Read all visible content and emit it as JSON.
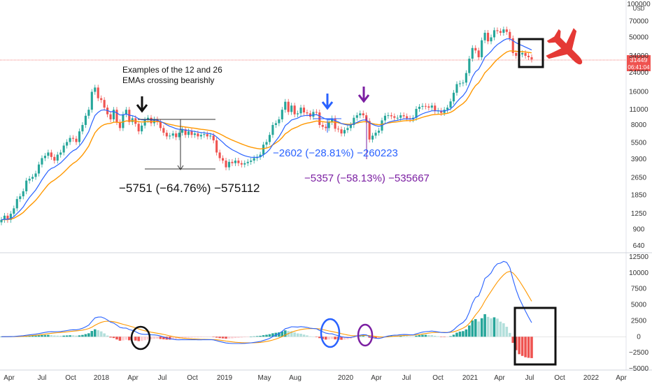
{
  "chart_data": [
    {
      "type": "candlestick",
      "scale": "log",
      "currency": "USD",
      "last_price": "31449",
      "countdown": "06:41:04",
      "y_ticks": [
        "100000",
        "70000",
        "50000",
        "34000",
        "24000",
        "16000",
        "11000",
        "8000",
        "5500",
        "3900",
        "2650",
        "1850",
        "1250",
        "900",
        "640"
      ],
      "x_ticks": [
        "Apr",
        "Jul",
        "Oct",
        "2018",
        "Apr",
        "Jul",
        "Oct",
        "2019",
        "May",
        "Aug",
        "2020",
        "Apr",
        "Jul",
        "Oct",
        "2021",
        "Apr",
        "Jul",
        "Oct",
        "2022",
        "Apr"
      ],
      "series": [
        {
          "name": "EMA 12",
          "color": "#2962ff"
        },
        {
          "name": "EMA 26",
          "color": "#ff9800"
        }
      ],
      "weekly_close": [
        1100,
        1200,
        1100,
        1250,
        1400,
        1700,
        1800,
        2000,
        2500,
        2600,
        2700,
        2900,
        3500,
        4000,
        4200,
        4500,
        4100,
        3800,
        4300,
        4500,
        5200,
        5600,
        6100,
        6000,
        5600,
        7000,
        8000,
        9700,
        11000,
        16000,
        17500,
        14000,
        13500,
        11500,
        10000,
        9000,
        11000,
        8500,
        7500,
        10000,
        11000,
        8500,
        9200,
        8200,
        7000,
        7900,
        8900,
        9300,
        8300,
        9000,
        8500,
        7500,
        6800,
        6300,
        6400,
        6700,
        6200,
        6800,
        7300,
        6500,
        7000,
        6500,
        6700,
        6300,
        6500,
        6600,
        6300,
        6400,
        5800,
        4500,
        4000,
        3800,
        3300,
        3700,
        3600,
        3800,
        3600,
        3500,
        3600,
        3700,
        3800,
        4000,
        4100,
        4300,
        5300,
        5600,
        6500,
        8000,
        8300,
        9000,
        11000,
        13000,
        10500,
        12000,
        10000,
        10200,
        11500,
        10400,
        10200,
        9500,
        10500,
        10400,
        8000,
        7700,
        7500,
        8500,
        9200,
        7400,
        7300,
        6700,
        7200,
        7500,
        8000,
        9300,
        9800,
        10200,
        9800,
        8700,
        5900,
        6400,
        6800,
        7100,
        8800,
        9700,
        9800,
        9600,
        9300,
        9300,
        9800,
        9600,
        9200,
        9000,
        9300,
        11200,
        11700,
        11900,
        11800,
        11500,
        12000,
        10700,
        10800,
        10300,
        11000,
        11500,
        13100,
        15700,
        18800,
        19100,
        19400,
        23700,
        32000,
        40000,
        38000,
        33000,
        47000,
        55000,
        46000,
        50000,
        58000,
        57000,
        55000,
        59000,
        56000,
        49000,
        36000,
        34000,
        35000,
        36000,
        34000,
        33000,
        31449
      ],
      "annotations": [
        {
          "label": "Examples of the 12 and 26 EMAs crossing bearishly"
        },
        {
          "label": "−5751 (−64.76%) −575112"
        },
        {
          "label": "−2602 (−28.81%) −260223"
        },
        {
          "label": "−5357 (−58.13%) −535667"
        }
      ]
    },
    {
      "type": "macd",
      "y_ticks": [
        "12500",
        "10000",
        "7500",
        "5000",
        "2500",
        "0",
        "−2500",
        "−5000"
      ],
      "series": [
        {
          "name": "MACD",
          "color": "#2962ff"
        },
        {
          "name": "Signal",
          "color": "#ff9800"
        },
        {
          "name": "Histogram",
          "color": "#26a69a"
        }
      ]
    }
  ]
}
